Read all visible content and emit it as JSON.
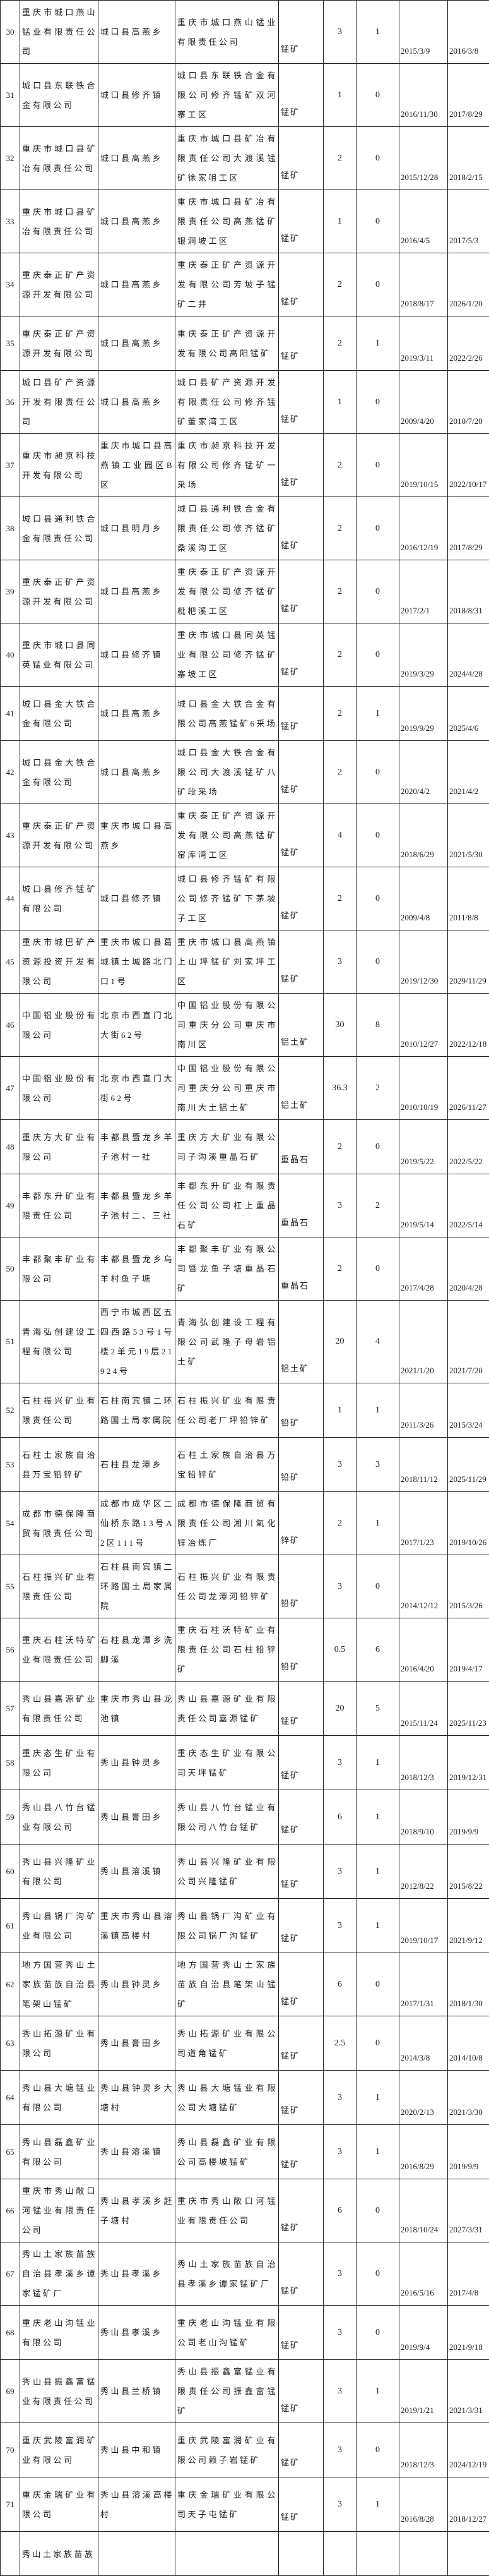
{
  "colors": {
    "background": "#ffffff",
    "border": "#1f1f1f",
    "text": "#1b1b1b"
  },
  "table": {
    "rows": [
      {
        "no": "30",
        "company": "重庆市城口燕山锰业有限责任公司",
        "address": "城口县高燕乡",
        "mine": "重庆市城口燕山锰业有限责任公司",
        "mineral": "锰矿",
        "num1": "3",
        "num2": "1",
        "date_start": "2015/3/9",
        "date_end": "2016/3/8"
      },
      {
        "no": "31",
        "company": "城口县东联铁合金有限公司",
        "address": "城口县修齐镇",
        "mine": "城口县东联铁合金有限公司修齐锰矿双河寨工区",
        "mineral": "锰矿",
        "num1": "1",
        "num2": "0",
        "date_start": "2016/11/30",
        "date_end": "2017/8/29"
      },
      {
        "no": "32",
        "company": "重庆市城口县矿冶有限责任公司",
        "address": "城口县高燕乡",
        "mine": "重庆市城口县矿冶有限责任公司大渡溪锰矿徐家咀工区",
        "mineral": "锰矿",
        "num1": "2",
        "num2": "0",
        "date_start": "2015/12/28",
        "date_end": "2018/2/15"
      },
      {
        "no": "33",
        "company": "重庆市城口县矿冶有限责任公司",
        "address": "城口县高燕乡",
        "mine": "重庆市城口县矿冶有限责任公司高燕锰矿银洞坡工区",
        "mineral": "锰矿",
        "num1": "1",
        "num2": "0",
        "date_start": "2016/4/5",
        "date_end": "2017/5/3"
      },
      {
        "no": "34",
        "company": "重庆泰正矿产资源开发有限公司",
        "address": "城口县高燕乡",
        "mine": "重庆泰正矿产资源开发有限公司芳坡子锰矿二井",
        "mineral": "锰矿",
        "num1": "2",
        "num2": "0",
        "date_start": "2018/8/17",
        "date_end": "2026/1/20"
      },
      {
        "no": "35",
        "company": "重庆泰正矿产资源开发有限公司",
        "address": "城口县高燕乡",
        "mine": "重庆泰正矿产资源开发有限公司高阳锰矿",
        "mineral": "锰矿",
        "num1": "2",
        "num2": "1",
        "date_start": "2019/3/11",
        "date_end": "2022/2/26"
      },
      {
        "no": "36",
        "company": "城口县矿产资源开发有限责任公司",
        "address": "城口县高燕乡",
        "mine": "城口县矿产资源开发有限责任公司修齐锰矿董家湾工区",
        "mineral": "锰矿",
        "num1": "1",
        "num2": "0",
        "date_start": "2009/4/20",
        "date_end": "2010/7/20"
      },
      {
        "no": "37",
        "company": "重庆市昶京科技开发有限公司",
        "address": "重庆市城口县高燕镇工业园区B区",
        "mine": "重庆市昶京科技开发有限公司修齐锰矿一采场",
        "mineral": "锰矿",
        "num1": "2",
        "num2": "0",
        "date_start": "2019/10/15",
        "date_end": "2022/10/17"
      },
      {
        "no": "38",
        "company": "城口县通利铁合金有限责任公司",
        "address": "城口县明月乡",
        "mine": "城口县通利铁合金有限责任公司修齐锰矿桑溪沟工区",
        "mineral": "锰矿",
        "num1": "2",
        "num2": "0",
        "date_start": "2016/12/19",
        "date_end": "2017/8/29"
      },
      {
        "no": "39",
        "company": "重庆泰正矿产资源开发有限公司",
        "address": "城口县高燕乡",
        "mine": "重庆泰正矿产资源开发有限公司修齐锰矿枇杷溪工区",
        "mineral": "锰矿",
        "num1": "2",
        "num2": "0",
        "date_start": "2017/2/1",
        "date_end": "2018/8/31"
      },
      {
        "no": "40",
        "company": "重庆市城口县同英锰业有限公司",
        "address": "城口县修齐镇",
        "mine": "重庆市城口县同英锰业有限公司修齐锰矿寨坡工区",
        "mineral": "锰矿",
        "num1": "2",
        "num2": "0",
        "date_start": "2019/3/29",
        "date_end": "2024/4/28"
      },
      {
        "no": "41",
        "company": "城口县金大铁合金有限公司",
        "address": "城口县高燕乡",
        "mine": "城口县金大铁合金有限公司高燕锰矿6采场",
        "mineral": "锰矿",
        "num1": "2",
        "num2": "1",
        "date_start": "2019/9/29",
        "date_end": "2025/4/6"
      },
      {
        "no": "42",
        "company": "城口县金大铁合金有限公司",
        "address": "城口县高燕乡",
        "mine": "城口县金大铁合金有限公司大渡溪锰矿八矿段采场",
        "mineral": "锰矿",
        "num1": "2",
        "num2": "0",
        "date_start": "2020/4/2",
        "date_end": "2021/4/2"
      },
      {
        "no": "43",
        "company": "重庆泰正矿产资源开发有限公司",
        "address": "重庆市城口县高燕乡",
        "mine": "重庆泰正矿产资源开发有限公司高燕锰矿窑库湾工区",
        "mineral": "锰矿",
        "num1": "4",
        "num2": "0",
        "date_start": "2018/6/29",
        "date_end": "2021/5/30"
      },
      {
        "no": "44",
        "company": "城口县修齐锰矿有限公司",
        "address": "城口县修齐镇",
        "mine": "城口县修齐锰矿有限公司修齐锰矿下茅坡子工区",
        "mineral": "锰矿",
        "num1": "2",
        "num2": "0",
        "date_start": "2009/4/8",
        "date_end": "2011/8/8"
      },
      {
        "no": "45",
        "company": "重庆市城巴矿产资源投资开发有限公司",
        "address": "重庆市城口县葛城镇土城路北门口1号",
        "mine": "重庆市城口县高燕镇上山坪锰矿刘家坪工区",
        "mineral": "锰矿",
        "num1": "3",
        "num2": "0",
        "date_start": "2019/12/30",
        "date_end": "2029/11/29"
      },
      {
        "no": "46",
        "company": "中国铝业股份有限公司",
        "address": "北京市西直门北大街62号",
        "mine": "中国铝业股份有限公司重庆分公司重庆市南川区",
        "mineral": "铝土矿",
        "num1": "30",
        "num2": "8",
        "date_start": "2010/12/27",
        "date_end": "2022/12/18"
      },
      {
        "no": "47",
        "company": "中国铝业股份有限公司",
        "address": "北京市西直门大街62号",
        "mine": "中国铝业股份有限公司重庆分公司重庆市南川大土铝土矿",
        "mineral": "铝土矿",
        "num1": "36.3",
        "num2": "2",
        "date_start": "2010/10/19",
        "date_end": "2026/11/27"
      },
      {
        "no": "48",
        "company": "重庆方大矿业有限公司",
        "address": "丰都县暨龙乡羊子池村一社",
        "mine": "重庆方大矿业有限公司子沟溪重晶石矿",
        "mineral": "重晶石",
        "num1": "2",
        "num2": "0",
        "date_start": "2019/5/22",
        "date_end": "2022/5/22"
      },
      {
        "no": "49",
        "company": "丰都东升矿业有限责任公司",
        "address": "丰都县暨龙乡羊子池村二、三社",
        "mine": "丰都东升矿业有限责任公司公司杠上重晶石矿",
        "mineral": "重晶石",
        "num1": "3",
        "num2": "2",
        "date_start": "2019/5/14",
        "date_end": "2022/5/14"
      },
      {
        "no": "50",
        "company": "丰都聚丰矿业有限公司",
        "address": "丰都县暨龙乡乌羊村鱼子塘",
        "mine": "丰都聚丰矿业有限公司暨龙鱼子塘重晶石矿",
        "mineral": "重晶石",
        "num1": "2",
        "num2": "0",
        "date_start": "2017/4/28",
        "date_end": "2020/4/28"
      },
      {
        "no": "51",
        "company": "青海弘创建设工程有限公司",
        "address": "西宁市城西区五四西路53号1号楼2单元19层21924号",
        "mine": "青海弘创建设工程有限公司武隆子母岩铝土矿",
        "mineral": "铝土矿",
        "num1": "20",
        "num2": "4",
        "date_start": "2021/1/20",
        "date_end": "2021/7/20"
      },
      {
        "no": "52",
        "company": "石柱振兴矿业有限责任公司",
        "address": "石柱南宾镇二环路国土局家属院",
        "mine": "石柱振兴矿业有限责任公司老厂坪铅锌矿",
        "mineral": "铅矿",
        "num1": "1",
        "num2": "1",
        "date_start": "2011/3/26",
        "date_end": "2015/3/24"
      },
      {
        "no": "53",
        "company": "石柱土家族自治县万宝铅锌矿",
        "address": "石柱县龙潭乡",
        "mine": "石柱土家族自治县万宝铅锌矿",
        "mineral": "铅矿",
        "num1": "3",
        "num2": "3",
        "date_start": "2018/11/12",
        "date_end": "2025/11/29"
      },
      {
        "no": "54",
        "company": "成都市德保隆商贸有限责任公司",
        "address": "成都市成华区二仙桥东路13号A2区111号",
        "mine": "成都市德保隆商贸有限责任公司湘川氧化锌冶炼厂",
        "mineral": "锌矿",
        "num1": "2",
        "num2": "1",
        "date_start": "2017/1/23",
        "date_end": "2019/10/26"
      },
      {
        "no": "55",
        "company": "石柱振兴矿业有限责任公司",
        "address": "石柱县南宾镇二环路国土局家属院",
        "mine": "石柱振兴矿业有限责任公司龙潭河铅锌矿",
        "mineral": "铅矿",
        "num1": "3",
        "num2": "0",
        "date_start": "2014/12/12",
        "date_end": "2015/3/26"
      },
      {
        "no": "56",
        "company": "重庆石柱沃特矿业有限责任公司",
        "address": "石柱县龙潭乡洗脚溪",
        "mine": "重庆石柱沃特矿业有限责任公司石柱铅锌矿",
        "mineral": "铅矿",
        "num1": "0.5",
        "num2": "6",
        "date_start": "2016/4/20",
        "date_end": "2019/4/17"
      },
      {
        "no": "57",
        "company": "秀山县嘉源矿业有限责任公司",
        "address": "重庆市秀山县龙池镇",
        "mine": "秀山县嘉源矿业有限责任公司嘉源锰矿",
        "mineral": "锰矿",
        "num1": "20",
        "num2": "5",
        "date_start": "2015/11/24",
        "date_end": "2025/11/23"
      },
      {
        "no": "58",
        "company": "重庆态生矿业有限公司",
        "address": "秀山县钟灵乡",
        "mine": "重庆态生矿业有限公司天坪锰矿",
        "mineral": "锰矿",
        "num1": "3",
        "num2": "1",
        "date_start": "2018/12/3",
        "date_end": "2019/12/31"
      },
      {
        "no": "59",
        "company": "秀山县八竹台锰业有限公司",
        "address": "秀山县膏田乡",
        "mine": "秀山县八竹台锰业有限公司八竹台锰矿",
        "mineral": "锰矿",
        "num1": "6",
        "num2": "1",
        "date_start": "2018/9/10",
        "date_end": "2019/9/9"
      },
      {
        "no": "60",
        "company": "秀山县兴隆矿业有限公司",
        "address": "秀山县溶溪镇",
        "mine": "秀山县兴隆矿业有限公司兴隆锰矿",
        "mineral": "锰矿",
        "num1": "3",
        "num2": "1",
        "date_start": "2012/8/22",
        "date_end": "2015/8/22"
      },
      {
        "no": "61",
        "company": "秀山县锅厂沟矿业有限公司",
        "address": "重庆市秀山县溶溪镇高楼村",
        "mine": "秀山县锅厂沟矿业有限公司锅厂沟锰矿",
        "mineral": "锰矿",
        "num1": "3",
        "num2": "1",
        "date_start": "2019/10/17",
        "date_end": "2021/9/12"
      },
      {
        "no": "62",
        "company": "地方国营秀山土家族苗族自治县笔架山锰矿",
        "address": "秀山县钟灵乡",
        "mine": "地方国营秀山土家族苗族自治县笔架山锰矿",
        "mineral": "锰矿",
        "num1": "6",
        "num2": "0",
        "date_start": "2017/1/31",
        "date_end": "2018/1/30"
      },
      {
        "no": "63",
        "company": "秀山拓源矿业有限公司",
        "address": "秀山县膏田乡",
        "mine": "秀山拓源矿业有限公司道角锰矿",
        "mineral": "锰矿",
        "num1": "2.5",
        "num2": "0",
        "date_start": "2014/3/8",
        "date_end": "2014/10/8"
      },
      {
        "no": "64",
        "company": "秀山县大塘锰业有限公司",
        "address": "秀山县钟灵乡大塘村",
        "mine": "秀山县大塘锰业有限公司大塘锰矿",
        "mineral": "锰矿",
        "num1": "3",
        "num2": "1",
        "date_start": "2020/2/13",
        "date_end": "2021/3/30"
      },
      {
        "no": "65",
        "company": "秀山县磊鑫矿业有限公司",
        "address": "秀山县溶溪镇",
        "mine": "秀山县磊鑫矿业有限公司高楼坡锰矿",
        "mineral": "锰矿",
        "num1": "3",
        "num2": "1",
        "date_start": "2016/8/29",
        "date_end": "2019/9/9"
      },
      {
        "no": "66",
        "company": "重庆市秀山敞口河锰业有限责任公司",
        "address": "秀山县孝溪乡赶子塘村",
        "mine": "重庆市秀山敞口河锰业有限责任公司",
        "mineral": "锰矿",
        "num1": "6",
        "num2": "0",
        "date_start": "2018/10/24",
        "date_end": "2027/3/31"
      },
      {
        "no": "67",
        "company": "秀山土家族苗族自治县孝溪乡谭家锰矿厂",
        "address": "秀山县孝溪乡",
        "mine": "秀山土家族苗族自治县孝溪乡谭家锰矿厂",
        "mineral": "锰矿",
        "num1": "3",
        "num2": "0",
        "date_start": "2016/5/16",
        "date_end": "2017/4/8"
      },
      {
        "no": "68",
        "company": "重庆老山沟锰业有限公司",
        "address": "秀山县孝溪乡",
        "mine": "重庆老山沟锰业有限公司老山沟锰矿",
        "mineral": "锰矿",
        "num1": "3",
        "num2": "0",
        "date_start": "2019/9/4",
        "date_end": "2021/9/18"
      },
      {
        "no": "69",
        "company": "秀山县振鑫富锰业有限责任公司",
        "address": "秀山县兰桥镇",
        "mine": "秀山县振鑫富锰业有限责任公司振鑫富锰矿",
        "mineral": "锰矿",
        "num1": "3",
        "num2": "1",
        "date_start": "2019/1/21",
        "date_end": "2021/3/31"
      },
      {
        "no": "70",
        "company": "重庆武陵富润矿业有限公司",
        "address": "秀山县中和镇",
        "mine": "重庆武陵富润矿业有限公司赖子岩锰矿",
        "mineral": "锰矿",
        "num1": "3",
        "num2": "0",
        "date_start": "2018/12/3",
        "date_end": "2024/12/19"
      },
      {
        "no": "71",
        "company": "重庆金瑞矿业有限公司",
        "address": "秀山县溶溪高楼村",
        "mine": "重庆金瑞矿业有限公司天子屯锰矿",
        "mineral": "锰矿",
        "num1": "3",
        "num2": "1",
        "date_start": "2016/8/28",
        "date_end": "2018/12/27"
      }
    ],
    "partial_row": {
      "no": "",
      "company": "秀山土家族苗族",
      "address": "",
      "mine": "",
      "mineral": "",
      "num1": "",
      "num2": "",
      "date_start": "",
      "date_end": ""
    }
  }
}
